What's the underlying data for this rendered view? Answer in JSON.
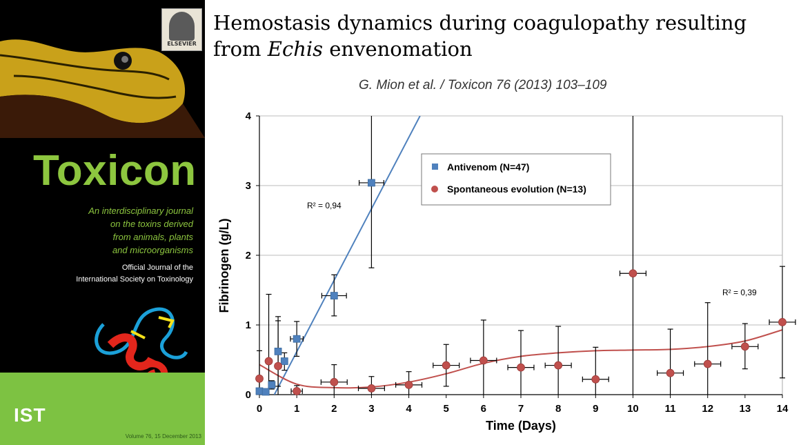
{
  "slide": {
    "title_main": "Hemostasis dynamics during coagulopathy resulting from ",
    "title_italic": "Echis",
    "title_end": " envenomation",
    "citation": "G. Mion et al. / Toxicon 76 (2013) 103–109"
  },
  "cover": {
    "publisher": "ELSEVIER",
    "journal": "Toxicon",
    "tagline": "An interdisciplinary journal\non the toxins derived\nfrom animals, plants\nand microorganisms",
    "official": "Official Journal of the\nInternational Society on Toxinology",
    "society_logo": "IST",
    "volume": "Volume 76, 15 December 2013",
    "colors": {
      "background": "#000000",
      "green": "#8dc63f",
      "band": "#7dc242"
    }
  },
  "chart_data": {
    "type": "scatter",
    "xlabel": "Time   (Days)",
    "ylabel": "Fibrinogen    (g/L)",
    "xlim": [
      0,
      14
    ],
    "ylim": [
      0,
      4
    ],
    "xticks": [
      0,
      1,
      2,
      3,
      4,
      5,
      6,
      7,
      8,
      9,
      10,
      11,
      12,
      13,
      14
    ],
    "yticks": [
      0,
      1,
      2,
      3,
      4
    ],
    "grid": "horizontal",
    "legend_position": "top-right",
    "series": [
      {
        "name": "Antivenom (N=47)",
        "color": "#4f81bd",
        "marker": "square",
        "points": [
          {
            "x": 0,
            "y": 0.05,
            "ylo": 0.05,
            "yhi": 0.05
          },
          {
            "x": 0.17,
            "y": 0.04,
            "ylo": 0.04,
            "yhi": 0.04
          },
          {
            "x": 0.33,
            "y": 0.14,
            "ylo": 0.08,
            "yhi": 0.2
          },
          {
            "x": 0.5,
            "y": 0.62,
            "ylo": 0.12,
            "yhi": 1.12
          },
          {
            "x": 0.67,
            "y": 0.48,
            "ylo": 0.35,
            "yhi": 0.6
          },
          {
            "x": 1,
            "y": 0.8,
            "ylo": 0.55,
            "yhi": 1.05,
            "xlo": 0.83,
            "xhi": 1.17
          },
          {
            "x": 2,
            "y": 1.42,
            "ylo": 1.13,
            "yhi": 1.72,
            "xlo": 1.67,
            "xhi": 2.33
          },
          {
            "x": 3,
            "y": 3.04,
            "ylo": 1.82,
            "yhi": 4,
            "xlo": 2.67,
            "xhi": 3.33
          }
        ],
        "trendline": {
          "type": "linear",
          "x": [
            0.4,
            4.3
          ],
          "y": [
            0.0,
            4.0
          ],
          "r2_label": "R² = 0,94"
        }
      },
      {
        "name": "Spontaneous evolution (N=13)",
        "color": "#c0504d",
        "marker": "circle",
        "points": [
          {
            "x": 0,
            "y": 0.23,
            "ylo": 0.0,
            "yhi": 0.63
          },
          {
            "x": 0.25,
            "y": 0.48,
            "ylo": 0.0,
            "yhi": 1.44
          },
          {
            "x": 0.5,
            "y": 0.41,
            "ylo": 0.0,
            "yhi": 1.06
          },
          {
            "x": 1,
            "y": 0.05,
            "ylo": 0.0,
            "yhi": 0.13,
            "xlo": 0.85,
            "xhi": 1.15
          },
          {
            "x": 2,
            "y": 0.18,
            "ylo": 0.0,
            "yhi": 0.43,
            "xlo": 1.65,
            "xhi": 2.35
          },
          {
            "x": 3,
            "y": 0.09,
            "ylo": 0.0,
            "yhi": 0.26,
            "xlo": 2.65,
            "xhi": 3.35
          },
          {
            "x": 4,
            "y": 0.14,
            "ylo": 0.0,
            "yhi": 0.33,
            "xlo": 3.65,
            "xhi": 4.35
          },
          {
            "x": 5,
            "y": 0.42,
            "ylo": 0.12,
            "yhi": 0.72,
            "xlo": 4.65,
            "xhi": 5.35
          },
          {
            "x": 6,
            "y": 0.49,
            "ylo": 0.0,
            "yhi": 1.07,
            "xlo": 5.65,
            "xhi": 6.35
          },
          {
            "x": 7,
            "y": 0.39,
            "ylo": 0.0,
            "yhi": 0.92,
            "xlo": 6.65,
            "xhi": 7.35
          },
          {
            "x": 8,
            "y": 0.42,
            "ylo": 0.0,
            "yhi": 0.98,
            "xlo": 7.65,
            "xhi": 8.35
          },
          {
            "x": 9,
            "y": 0.22,
            "ylo": 0.0,
            "yhi": 0.68,
            "xlo": 8.65,
            "xhi": 9.35
          },
          {
            "x": 10,
            "y": 1.74,
            "ylo": 0.0,
            "yhi": 4.0,
            "xlo": 9.65,
            "xhi": 10.35
          },
          {
            "x": 11,
            "y": 0.31,
            "ylo": 0.0,
            "yhi": 0.94,
            "xlo": 10.65,
            "xhi": 11.35
          },
          {
            "x": 12,
            "y": 0.44,
            "ylo": 0.0,
            "yhi": 1.32,
            "xlo": 11.65,
            "xhi": 12.35
          },
          {
            "x": 13,
            "y": 0.69,
            "ylo": 0.37,
            "yhi": 1.02,
            "xlo": 12.65,
            "xhi": 13.35
          },
          {
            "x": 14,
            "y": 1.04,
            "ylo": 0.24,
            "yhi": 1.84,
            "xlo": 13.65,
            "xhi": 14.35
          }
        ],
        "trendline": {
          "type": "polynomial",
          "x": [
            0,
            1,
            2,
            3,
            4,
            5,
            6,
            7,
            8,
            9,
            10,
            11,
            12,
            13,
            14
          ],
          "y": [
            0.43,
            0.15,
            0.1,
            0.11,
            0.18,
            0.3,
            0.45,
            0.55,
            0.6,
            0.63,
            0.64,
            0.65,
            0.69,
            0.77,
            0.93
          ],
          "r2_label": "R² = 0,39"
        }
      }
    ]
  }
}
